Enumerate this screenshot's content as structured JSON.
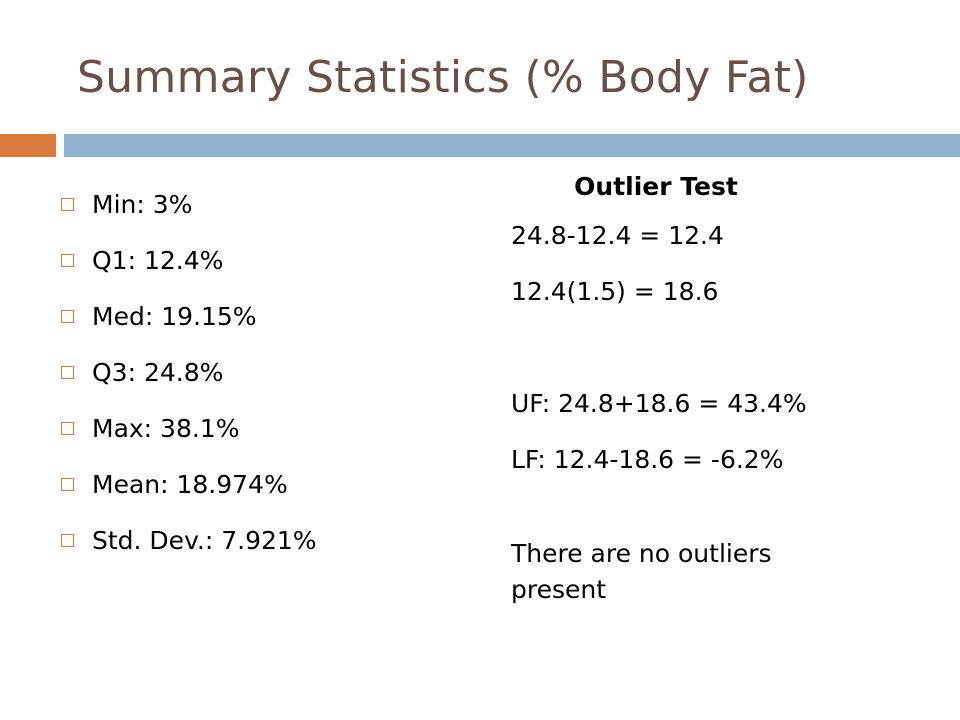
{
  "slide": {
    "title": "Summary Statistics (% Body Fat)",
    "accent_orange": "#d97b3c",
    "accent_blue": "#92b0d0",
    "title_color": "#6b4f45"
  },
  "stats": {
    "items": [
      {
        "label": "Min: 3%"
      },
      {
        "label": "Q1: 12.4%"
      },
      {
        "label": "Med: 19.15%"
      },
      {
        "label": "Q3: 24.8%"
      },
      {
        "label": "Max: 38.1%"
      },
      {
        "label": "Mean: 18.974%"
      },
      {
        "label": "Std. Dev.: 7.921%"
      }
    ],
    "bullet_icon": "square-bullet-icon"
  },
  "outlier_test": {
    "heading": "Outlier Test",
    "iqr_line": "24.8-12.4 = 12.4",
    "step_line": "12.4(1.5) = 18.6",
    "upper_fence": "UF: 24.8+18.6 = 43.4%",
    "lower_fence": "LF: 12.4-18.6 = -6.2%",
    "conclusion": "There are no outliers present"
  }
}
